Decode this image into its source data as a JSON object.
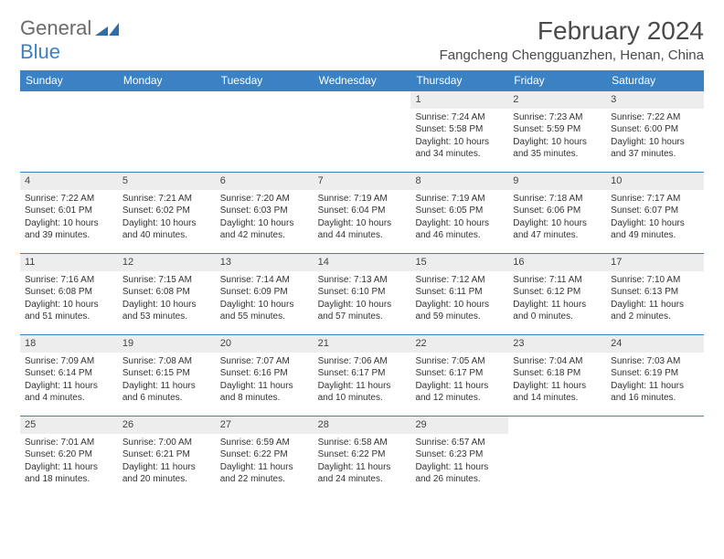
{
  "logo": {
    "text1": "General",
    "text2": "Blue"
  },
  "title": "February 2024",
  "location": "Fangcheng Chengguanzhen, Henan, China",
  "colors": {
    "header_bg": "#3b82c4",
    "daynum_bg": "#ededed",
    "text": "#333333",
    "title_text": "#4a4a4a"
  },
  "weekdays": [
    "Sunday",
    "Monday",
    "Tuesday",
    "Wednesday",
    "Thursday",
    "Friday",
    "Saturday"
  ],
  "weeks": [
    [
      null,
      null,
      null,
      null,
      {
        "n": "1",
        "sr": "7:24 AM",
        "ss": "5:58 PM",
        "dl": "10 hours and 34 minutes."
      },
      {
        "n": "2",
        "sr": "7:23 AM",
        "ss": "5:59 PM",
        "dl": "10 hours and 35 minutes."
      },
      {
        "n": "3",
        "sr": "7:22 AM",
        "ss": "6:00 PM",
        "dl": "10 hours and 37 minutes."
      }
    ],
    [
      {
        "n": "4",
        "sr": "7:22 AM",
        "ss": "6:01 PM",
        "dl": "10 hours and 39 minutes."
      },
      {
        "n": "5",
        "sr": "7:21 AM",
        "ss": "6:02 PM",
        "dl": "10 hours and 40 minutes."
      },
      {
        "n": "6",
        "sr": "7:20 AM",
        "ss": "6:03 PM",
        "dl": "10 hours and 42 minutes."
      },
      {
        "n": "7",
        "sr": "7:19 AM",
        "ss": "6:04 PM",
        "dl": "10 hours and 44 minutes."
      },
      {
        "n": "8",
        "sr": "7:19 AM",
        "ss": "6:05 PM",
        "dl": "10 hours and 46 minutes."
      },
      {
        "n": "9",
        "sr": "7:18 AM",
        "ss": "6:06 PM",
        "dl": "10 hours and 47 minutes."
      },
      {
        "n": "10",
        "sr": "7:17 AM",
        "ss": "6:07 PM",
        "dl": "10 hours and 49 minutes."
      }
    ],
    [
      {
        "n": "11",
        "sr": "7:16 AM",
        "ss": "6:08 PM",
        "dl": "10 hours and 51 minutes."
      },
      {
        "n": "12",
        "sr": "7:15 AM",
        "ss": "6:08 PM",
        "dl": "10 hours and 53 minutes."
      },
      {
        "n": "13",
        "sr": "7:14 AM",
        "ss": "6:09 PM",
        "dl": "10 hours and 55 minutes."
      },
      {
        "n": "14",
        "sr": "7:13 AM",
        "ss": "6:10 PM",
        "dl": "10 hours and 57 minutes."
      },
      {
        "n": "15",
        "sr": "7:12 AM",
        "ss": "6:11 PM",
        "dl": "10 hours and 59 minutes."
      },
      {
        "n": "16",
        "sr": "7:11 AM",
        "ss": "6:12 PM",
        "dl": "11 hours and 0 minutes."
      },
      {
        "n": "17",
        "sr": "7:10 AM",
        "ss": "6:13 PM",
        "dl": "11 hours and 2 minutes."
      }
    ],
    [
      {
        "n": "18",
        "sr": "7:09 AM",
        "ss": "6:14 PM",
        "dl": "11 hours and 4 minutes."
      },
      {
        "n": "19",
        "sr": "7:08 AM",
        "ss": "6:15 PM",
        "dl": "11 hours and 6 minutes."
      },
      {
        "n": "20",
        "sr": "7:07 AM",
        "ss": "6:16 PM",
        "dl": "11 hours and 8 minutes."
      },
      {
        "n": "21",
        "sr": "7:06 AM",
        "ss": "6:17 PM",
        "dl": "11 hours and 10 minutes."
      },
      {
        "n": "22",
        "sr": "7:05 AM",
        "ss": "6:17 PM",
        "dl": "11 hours and 12 minutes."
      },
      {
        "n": "23",
        "sr": "7:04 AM",
        "ss": "6:18 PM",
        "dl": "11 hours and 14 minutes."
      },
      {
        "n": "24",
        "sr": "7:03 AM",
        "ss": "6:19 PM",
        "dl": "11 hours and 16 minutes."
      }
    ],
    [
      {
        "n": "25",
        "sr": "7:01 AM",
        "ss": "6:20 PM",
        "dl": "11 hours and 18 minutes."
      },
      {
        "n": "26",
        "sr": "7:00 AM",
        "ss": "6:21 PM",
        "dl": "11 hours and 20 minutes."
      },
      {
        "n": "27",
        "sr": "6:59 AM",
        "ss": "6:22 PM",
        "dl": "11 hours and 22 minutes."
      },
      {
        "n": "28",
        "sr": "6:58 AM",
        "ss": "6:22 PM",
        "dl": "11 hours and 24 minutes."
      },
      {
        "n": "29",
        "sr": "6:57 AM",
        "ss": "6:23 PM",
        "dl": "11 hours and 26 minutes."
      },
      null,
      null
    ]
  ],
  "labels": {
    "sunrise": "Sunrise: ",
    "sunset": "Sunset: ",
    "daylight": "Daylight: "
  }
}
